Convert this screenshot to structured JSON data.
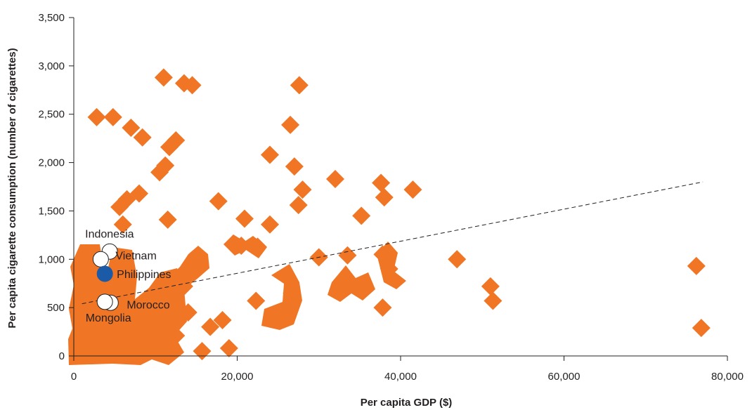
{
  "colors": {
    "cluster": "#f07625",
    "highlight": "#1a5aa6",
    "open_marker_fill": "#ffffff",
    "marker_stroke": "#231f20",
    "axis": "#231f20",
    "trendline": "#231f20"
  },
  "chart_data": {
    "type": "scatter",
    "title": "",
    "xlabel": "Per capita GDP ($)",
    "ylabel": "Per capita cigarette consumption (number of cigarettes)",
    "xlim": [
      0,
      80000
    ],
    "ylim": [
      0,
      3500
    ],
    "grid": false,
    "x_ticks": [
      0,
      20000,
      40000,
      60000,
      80000
    ],
    "x_tick_labels": [
      "0",
      "20,000",
      "40,000",
      "60,000",
      "80,000"
    ],
    "y_ticks": [
      0,
      500,
      1000,
      1500,
      2000,
      2500,
      3000,
      3500
    ],
    "y_tick_labels": [
      "0",
      "500",
      "1,000",
      "1,500",
      "2,000",
      "2,500",
      "3,000",
      "3,500"
    ],
    "trendline": {
      "style": "dashed",
      "points": [
        [
          1000,
          540
        ],
        [
          77000,
          1800
        ]
      ]
    },
    "countries": [
      {
        "name": "Indonesia",
        "x": 4400,
        "y": 1080,
        "highlight": false
      },
      {
        "name": "Vietnam",
        "x": 3300,
        "y": 1000,
        "highlight": false
      },
      {
        "name": "Philippines",
        "x": 3800,
        "y": 850,
        "highlight": true
      },
      {
        "name": "Morocco",
        "x": 4500,
        "y": 550,
        "highlight": false
      },
      {
        "name": "Mongolia",
        "x": 3800,
        "y": 560,
        "highlight": false
      }
    ],
    "other_countries": [
      [
        2800,
        2470
      ],
      [
        4800,
        2470
      ],
      [
        7000,
        2360
      ],
      [
        8400,
        2260
      ],
      [
        11000,
        2880
      ],
      [
        13500,
        2820
      ],
      [
        14500,
        2800
      ],
      [
        11700,
        2160
      ],
      [
        12500,
        2230
      ],
      [
        11200,
        1970
      ],
      [
        10500,
        1900
      ],
      [
        27600,
        2800
      ],
      [
        26500,
        2390
      ],
      [
        24000,
        2080
      ],
      [
        27000,
        1960
      ],
      [
        28000,
        1720
      ],
      [
        27500,
        1560
      ],
      [
        32000,
        1830
      ],
      [
        37600,
        1790
      ],
      [
        38000,
        1640
      ],
      [
        41500,
        1720
      ],
      [
        35200,
        1450
      ],
      [
        17700,
        1600
      ],
      [
        20900,
        1420
      ],
      [
        24000,
        1360
      ],
      [
        11500,
        1410
      ],
      [
        8000,
        1680
      ],
      [
        5600,
        1540
      ],
      [
        6500,
        1620
      ],
      [
        6000,
        1360
      ],
      [
        20500,
        1140
      ],
      [
        22500,
        1130
      ],
      [
        30000,
        1020
      ],
      [
        33500,
        1040
      ],
      [
        37800,
        1050
      ],
      [
        38600,
        900
      ],
      [
        46900,
        1000
      ],
      [
        51000,
        720
      ],
      [
        51300,
        570
      ],
      [
        33000,
        750
      ],
      [
        35000,
        700
      ],
      [
        37800,
        500
      ],
      [
        25800,
        450
      ],
      [
        26700,
        650
      ],
      [
        22300,
        570
      ],
      [
        18200,
        370
      ],
      [
        16700,
        300
      ],
      [
        15700,
        50
      ],
      [
        19000,
        80
      ],
      [
        14000,
        450
      ],
      [
        13500,
        720
      ],
      [
        10500,
        530
      ],
      [
        9000,
        230
      ],
      [
        6000,
        850
      ],
      [
        2000,
        800
      ],
      [
        1500,
        100
      ],
      [
        4500,
        330
      ],
      [
        7500,
        170
      ],
      [
        10500,
        100
      ],
      [
        12500,
        210
      ],
      [
        76200,
        930
      ],
      [
        76800,
        290
      ]
    ]
  }
}
